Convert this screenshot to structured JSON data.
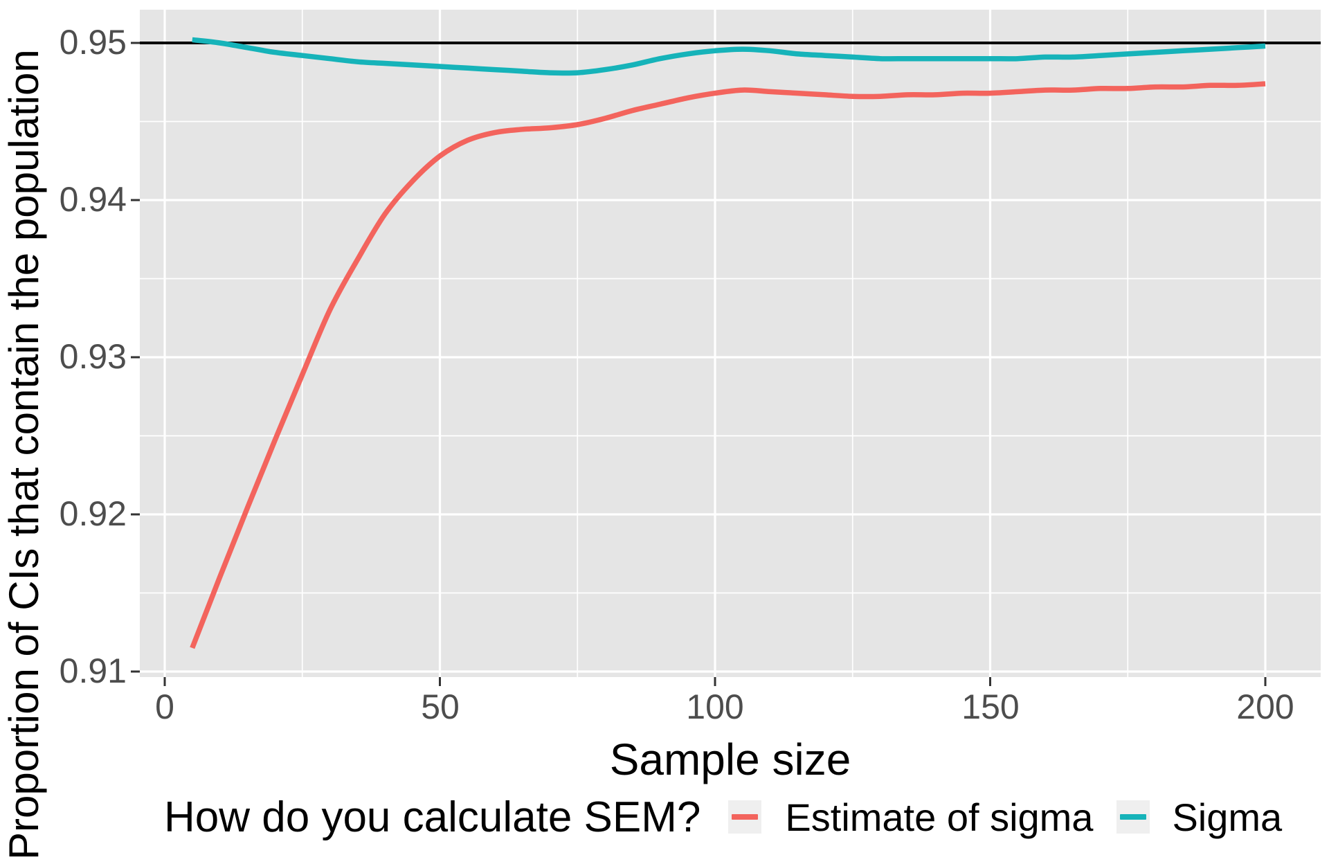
{
  "chart_data": {
    "type": "line",
    "title": "",
    "xlabel": "Sample size",
    "ylabel": "Proportion of CIs that contain the population",
    "xlim": [
      -4.5,
      210
    ],
    "ylim": [
      0.9096,
      0.9521
    ],
    "grid": "white major and minor gridlines on gray panel",
    "legend_position": "bottom",
    "legend_title": "How do you calculate SEM?",
    "x_tick_values": [
      0,
      50,
      100,
      150,
      200
    ],
    "x_tick_labels": [
      "0",
      "50",
      "100",
      "150",
      "200"
    ],
    "x_minor_values": [
      25,
      75,
      125,
      175
    ],
    "y_tick_values": [
      0.91,
      0.92,
      0.93,
      0.94,
      0.95
    ],
    "y_tick_labels": [
      "0.91",
      "0.92",
      "0.93",
      "0.94",
      "0.95"
    ],
    "y_minor_values": [
      0.915,
      0.925,
      0.935,
      0.945
    ],
    "reference_line_y": 0.95,
    "series": [
      {
        "name": "Estimate of sigma",
        "color": "#F3645D",
        "points": [
          [
            5,
            0.9115
          ],
          [
            10,
            0.916
          ],
          [
            15,
            0.9204
          ],
          [
            20,
            0.9247
          ],
          [
            25,
            0.9289
          ],
          [
            30,
            0.933
          ],
          [
            35,
            0.9362
          ],
          [
            40,
            0.9391
          ],
          [
            45,
            0.9412
          ],
          [
            50,
            0.9428
          ],
          [
            55,
            0.9438
          ],
          [
            60,
            0.9443
          ],
          [
            65,
            0.9445
          ],
          [
            70,
            0.9446
          ],
          [
            75,
            0.9448
          ],
          [
            80,
            0.9452
          ],
          [
            85,
            0.9457
          ],
          [
            90,
            0.9461
          ],
          [
            95,
            0.9465
          ],
          [
            100,
            0.9468
          ],
          [
            105,
            0.947
          ],
          [
            110,
            0.9469
          ],
          [
            115,
            0.9468
          ],
          [
            120,
            0.9467
          ],
          [
            125,
            0.9466
          ],
          [
            130,
            0.9466
          ],
          [
            135,
            0.9467
          ],
          [
            140,
            0.9467
          ],
          [
            145,
            0.9468
          ],
          [
            150,
            0.9468
          ],
          [
            155,
            0.9469
          ],
          [
            160,
            0.947
          ],
          [
            165,
            0.947
          ],
          [
            170,
            0.9471
          ],
          [
            175,
            0.9471
          ],
          [
            180,
            0.9472
          ],
          [
            185,
            0.9472
          ],
          [
            190,
            0.9473
          ],
          [
            195,
            0.9473
          ],
          [
            200,
            0.9474
          ]
        ]
      },
      {
        "name": "Sigma",
        "color": "#16B3B9",
        "points": [
          [
            5,
            0.9502
          ],
          [
            10,
            0.95
          ],
          [
            15,
            0.9497
          ],
          [
            20,
            0.9494
          ],
          [
            25,
            0.9492
          ],
          [
            30,
            0.949
          ],
          [
            35,
            0.9488
          ],
          [
            40,
            0.9487
          ],
          [
            45,
            0.9486
          ],
          [
            50,
            0.9485
          ],
          [
            55,
            0.9484
          ],
          [
            60,
            0.9483
          ],
          [
            65,
            0.9482
          ],
          [
            70,
            0.9481
          ],
          [
            75,
            0.9481
          ],
          [
            80,
            0.9483
          ],
          [
            85,
            0.9486
          ],
          [
            90,
            0.949
          ],
          [
            95,
            0.9493
          ],
          [
            100,
            0.9495
          ],
          [
            105,
            0.9496
          ],
          [
            110,
            0.9495
          ],
          [
            115,
            0.9493
          ],
          [
            120,
            0.9492
          ],
          [
            125,
            0.9491
          ],
          [
            130,
            0.949
          ],
          [
            135,
            0.949
          ],
          [
            140,
            0.949
          ],
          [
            145,
            0.949
          ],
          [
            150,
            0.949
          ],
          [
            155,
            0.949
          ],
          [
            160,
            0.9491
          ],
          [
            165,
            0.9491
          ],
          [
            170,
            0.9492
          ],
          [
            175,
            0.9493
          ],
          [
            180,
            0.9494
          ],
          [
            185,
            0.9495
          ],
          [
            190,
            0.9496
          ],
          [
            195,
            0.9497
          ],
          [
            200,
            0.9498
          ]
        ]
      }
    ],
    "colors": {
      "panel_background": "#E5E5E5",
      "gridline": "#FFFFFF",
      "reference_line": "#000000",
      "axis_tick": "#333333",
      "tick_label": "#4D4D4D",
      "legend_key_background": "#EFEFEF"
    }
  }
}
